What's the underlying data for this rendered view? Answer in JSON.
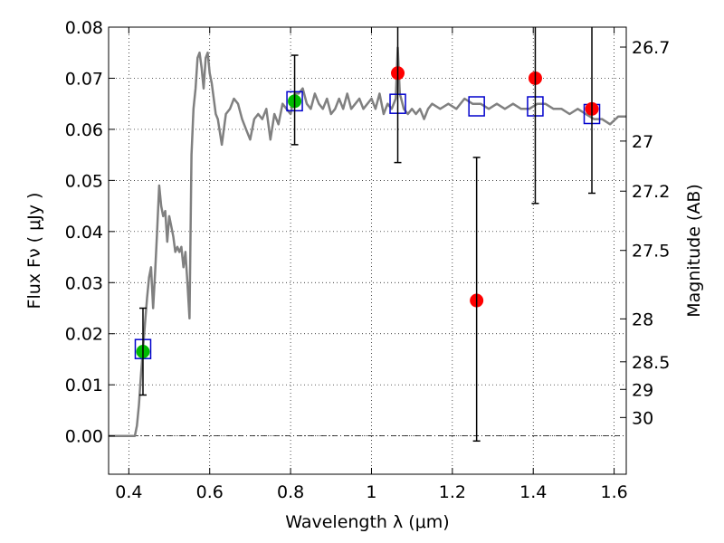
{
  "chart_data": {
    "type": "scatter",
    "xlabel": "Wavelength  λ (μm)",
    "ylabel": "Flux  Fν  ( μJy )",
    "y2label": "Magnitude (AB)",
    "xlim": [
      0.35,
      1.63
    ],
    "ylim": [
      -0.0075,
      0.08
    ],
    "grid": true,
    "x_ticks": [
      {
        "value": 0.4,
        "label": "0.4"
      },
      {
        "value": 0.6,
        "label": "0.6"
      },
      {
        "value": 0.8,
        "label": "0.8"
      },
      {
        "value": 1.0,
        "label": "1"
      },
      {
        "value": 1.2,
        "label": "1.2"
      },
      {
        "value": 1.4,
        "label": "1.4"
      },
      {
        "value": 1.6,
        "label": "1.6"
      }
    ],
    "y_ticks": [
      {
        "value": 0.0,
        "label": "0.00"
      },
      {
        "value": 0.01,
        "label": "0.01"
      },
      {
        "value": 0.02,
        "label": "0.02"
      },
      {
        "value": 0.03,
        "label": "0.03"
      },
      {
        "value": 0.04,
        "label": "0.04"
      },
      {
        "value": 0.05,
        "label": "0.05"
      },
      {
        "value": 0.06,
        "label": "0.06"
      },
      {
        "value": 0.07,
        "label": "0.07"
      },
      {
        "value": 0.08,
        "label": "0.08"
      }
    ],
    "magnitude_ticks": [
      {
        "label": "26.7",
        "flux": 0.0761
      },
      {
        "label": "27",
        "flux": 0.0577
      },
      {
        "label": "27.2",
        "flux": 0.0479
      },
      {
        "label": "27.5",
        "flux": 0.0363
      },
      {
        "label": "28",
        "flux": 0.0229
      },
      {
        "label": "28.5",
        "flux": 0.0145
      },
      {
        "label": "29",
        "flux": 0.0091
      },
      {
        "label": "30",
        "flux": 0.0036
      }
    ],
    "colors": {
      "model": "#808080",
      "model_points": "#0000cc",
      "green_points": "#00bb00",
      "red_points": "#ff0000",
      "errorbar": "#000000"
    },
    "model_spectrum": {
      "x": [
        0.35,
        0.4,
        0.41,
        0.415,
        0.42,
        0.425,
        0.43,
        0.435,
        0.44,
        0.445,
        0.45,
        0.455,
        0.46,
        0.465,
        0.47,
        0.475,
        0.48,
        0.485,
        0.49,
        0.495,
        0.5,
        0.505,
        0.51,
        0.515,
        0.52,
        0.525,
        0.53,
        0.535,
        0.54,
        0.545,
        0.55,
        0.555,
        0.56,
        0.565,
        0.57,
        0.575,
        0.58,
        0.585,
        0.59,
        0.595,
        0.6,
        0.605,
        0.61,
        0.615,
        0.62,
        0.63,
        0.64,
        0.65,
        0.66,
        0.67,
        0.68,
        0.69,
        0.7,
        0.71,
        0.72,
        0.73,
        0.74,
        0.75,
        0.76,
        0.77,
        0.78,
        0.79,
        0.8,
        0.81,
        0.82,
        0.83,
        0.84,
        0.85,
        0.86,
        0.87,
        0.88,
        0.89,
        0.9,
        0.91,
        0.92,
        0.93,
        0.94,
        0.95,
        0.96,
        0.97,
        0.98,
        0.99,
        1.0,
        1.01,
        1.02,
        1.03,
        1.04,
        1.05,
        1.06,
        1.065,
        1.07,
        1.08,
        1.09,
        1.1,
        1.11,
        1.12,
        1.13,
        1.14,
        1.15,
        1.17,
        1.19,
        1.21,
        1.23,
        1.25,
        1.27,
        1.29,
        1.31,
        1.33,
        1.35,
        1.37,
        1.39,
        1.41,
        1.43,
        1.45,
        1.47,
        1.49,
        1.51,
        1.53,
        1.55,
        1.57,
        1.59,
        1.61,
        1.63
      ],
      "y": [
        0.0,
        0.0,
        0.0,
        0.0,
        0.002,
        0.006,
        0.012,
        0.017,
        0.022,
        0.027,
        0.031,
        0.033,
        0.025,
        0.032,
        0.04,
        0.049,
        0.045,
        0.043,
        0.044,
        0.038,
        0.043,
        0.041,
        0.039,
        0.036,
        0.037,
        0.036,
        0.037,
        0.033,
        0.036,
        0.03,
        0.023,
        0.055,
        0.064,
        0.068,
        0.074,
        0.075,
        0.072,
        0.068,
        0.074,
        0.075,
        0.071,
        0.069,
        0.066,
        0.063,
        0.062,
        0.057,
        0.063,
        0.064,
        0.066,
        0.065,
        0.062,
        0.06,
        0.058,
        0.062,
        0.063,
        0.062,
        0.064,
        0.058,
        0.063,
        0.061,
        0.065,
        0.064,
        0.063,
        0.067,
        0.067,
        0.068,
        0.065,
        0.064,
        0.067,
        0.065,
        0.064,
        0.066,
        0.063,
        0.064,
        0.066,
        0.064,
        0.067,
        0.064,
        0.065,
        0.066,
        0.064,
        0.065,
        0.066,
        0.064,
        0.067,
        0.063,
        0.065,
        0.064,
        0.066,
        0.076,
        0.067,
        0.064,
        0.063,
        0.064,
        0.063,
        0.064,
        0.062,
        0.064,
        0.065,
        0.064,
        0.065,
        0.064,
        0.066,
        0.065,
        0.065,
        0.064,
        0.065,
        0.064,
        0.065,
        0.064,
        0.064,
        0.065,
        0.065,
        0.064,
        0.064,
        0.063,
        0.064,
        0.063,
        0.062,
        0.062,
        0.061,
        0.0625,
        0.0625
      ]
    },
    "model_points": {
      "x": [
        0.435,
        0.81,
        1.065,
        1.26,
        1.405,
        1.545
      ],
      "y": [
        0.017,
        0.0655,
        0.065,
        0.0645,
        0.0645,
        0.063
      ]
    },
    "green_points": {
      "x": [
        0.435,
        0.81
      ],
      "y": [
        0.0165,
        0.0655
      ],
      "err_low": [
        0.008,
        0.057
      ],
      "err_high": [
        0.025,
        0.0745
      ]
    },
    "red_points": {
      "x": [
        1.065,
        1.26,
        1.405,
        1.545
      ],
      "y": [
        0.071,
        0.0265,
        0.07,
        0.064
      ],
      "err_low": [
        0.0535,
        -0.001,
        0.0455,
        0.0475
      ],
      "err_high": [
        0.08,
        0.0545,
        0.08,
        0.08
      ]
    }
  }
}
